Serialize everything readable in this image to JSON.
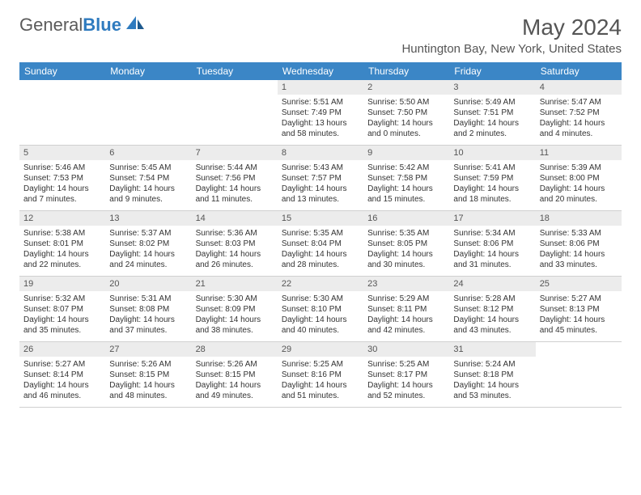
{
  "logo": {
    "part1": "General",
    "part2": "Blue"
  },
  "title": "May 2024",
  "location": "Huntington Bay, New York, United States",
  "accent_color": "#3b86c6",
  "daynum_bg": "#ececec",
  "weekdays": [
    "Sunday",
    "Monday",
    "Tuesday",
    "Wednesday",
    "Thursday",
    "Friday",
    "Saturday"
  ],
  "weeks": [
    [
      null,
      null,
      null,
      {
        "n": "1",
        "sr": "Sunrise: 5:51 AM",
        "ss": "Sunset: 7:49 PM",
        "d1": "Daylight: 13 hours",
        "d2": "and 58 minutes."
      },
      {
        "n": "2",
        "sr": "Sunrise: 5:50 AM",
        "ss": "Sunset: 7:50 PM",
        "d1": "Daylight: 14 hours",
        "d2": "and 0 minutes."
      },
      {
        "n": "3",
        "sr": "Sunrise: 5:49 AM",
        "ss": "Sunset: 7:51 PM",
        "d1": "Daylight: 14 hours",
        "d2": "and 2 minutes."
      },
      {
        "n": "4",
        "sr": "Sunrise: 5:47 AM",
        "ss": "Sunset: 7:52 PM",
        "d1": "Daylight: 14 hours",
        "d2": "and 4 minutes."
      }
    ],
    [
      {
        "n": "5",
        "sr": "Sunrise: 5:46 AM",
        "ss": "Sunset: 7:53 PM",
        "d1": "Daylight: 14 hours",
        "d2": "and 7 minutes."
      },
      {
        "n": "6",
        "sr": "Sunrise: 5:45 AM",
        "ss": "Sunset: 7:54 PM",
        "d1": "Daylight: 14 hours",
        "d2": "and 9 minutes."
      },
      {
        "n": "7",
        "sr": "Sunrise: 5:44 AM",
        "ss": "Sunset: 7:56 PM",
        "d1": "Daylight: 14 hours",
        "d2": "and 11 minutes."
      },
      {
        "n": "8",
        "sr": "Sunrise: 5:43 AM",
        "ss": "Sunset: 7:57 PM",
        "d1": "Daylight: 14 hours",
        "d2": "and 13 minutes."
      },
      {
        "n": "9",
        "sr": "Sunrise: 5:42 AM",
        "ss": "Sunset: 7:58 PM",
        "d1": "Daylight: 14 hours",
        "d2": "and 15 minutes."
      },
      {
        "n": "10",
        "sr": "Sunrise: 5:41 AM",
        "ss": "Sunset: 7:59 PM",
        "d1": "Daylight: 14 hours",
        "d2": "and 18 minutes."
      },
      {
        "n": "11",
        "sr": "Sunrise: 5:39 AM",
        "ss": "Sunset: 8:00 PM",
        "d1": "Daylight: 14 hours",
        "d2": "and 20 minutes."
      }
    ],
    [
      {
        "n": "12",
        "sr": "Sunrise: 5:38 AM",
        "ss": "Sunset: 8:01 PM",
        "d1": "Daylight: 14 hours",
        "d2": "and 22 minutes."
      },
      {
        "n": "13",
        "sr": "Sunrise: 5:37 AM",
        "ss": "Sunset: 8:02 PM",
        "d1": "Daylight: 14 hours",
        "d2": "and 24 minutes."
      },
      {
        "n": "14",
        "sr": "Sunrise: 5:36 AM",
        "ss": "Sunset: 8:03 PM",
        "d1": "Daylight: 14 hours",
        "d2": "and 26 minutes."
      },
      {
        "n": "15",
        "sr": "Sunrise: 5:35 AM",
        "ss": "Sunset: 8:04 PM",
        "d1": "Daylight: 14 hours",
        "d2": "and 28 minutes."
      },
      {
        "n": "16",
        "sr": "Sunrise: 5:35 AM",
        "ss": "Sunset: 8:05 PM",
        "d1": "Daylight: 14 hours",
        "d2": "and 30 minutes."
      },
      {
        "n": "17",
        "sr": "Sunrise: 5:34 AM",
        "ss": "Sunset: 8:06 PM",
        "d1": "Daylight: 14 hours",
        "d2": "and 31 minutes."
      },
      {
        "n": "18",
        "sr": "Sunrise: 5:33 AM",
        "ss": "Sunset: 8:06 PM",
        "d1": "Daylight: 14 hours",
        "d2": "and 33 minutes."
      }
    ],
    [
      {
        "n": "19",
        "sr": "Sunrise: 5:32 AM",
        "ss": "Sunset: 8:07 PM",
        "d1": "Daylight: 14 hours",
        "d2": "and 35 minutes."
      },
      {
        "n": "20",
        "sr": "Sunrise: 5:31 AM",
        "ss": "Sunset: 8:08 PM",
        "d1": "Daylight: 14 hours",
        "d2": "and 37 minutes."
      },
      {
        "n": "21",
        "sr": "Sunrise: 5:30 AM",
        "ss": "Sunset: 8:09 PM",
        "d1": "Daylight: 14 hours",
        "d2": "and 38 minutes."
      },
      {
        "n": "22",
        "sr": "Sunrise: 5:30 AM",
        "ss": "Sunset: 8:10 PM",
        "d1": "Daylight: 14 hours",
        "d2": "and 40 minutes."
      },
      {
        "n": "23",
        "sr": "Sunrise: 5:29 AM",
        "ss": "Sunset: 8:11 PM",
        "d1": "Daylight: 14 hours",
        "d2": "and 42 minutes."
      },
      {
        "n": "24",
        "sr": "Sunrise: 5:28 AM",
        "ss": "Sunset: 8:12 PM",
        "d1": "Daylight: 14 hours",
        "d2": "and 43 minutes."
      },
      {
        "n": "25",
        "sr": "Sunrise: 5:27 AM",
        "ss": "Sunset: 8:13 PM",
        "d1": "Daylight: 14 hours",
        "d2": "and 45 minutes."
      }
    ],
    [
      {
        "n": "26",
        "sr": "Sunrise: 5:27 AM",
        "ss": "Sunset: 8:14 PM",
        "d1": "Daylight: 14 hours",
        "d2": "and 46 minutes."
      },
      {
        "n": "27",
        "sr": "Sunrise: 5:26 AM",
        "ss": "Sunset: 8:15 PM",
        "d1": "Daylight: 14 hours",
        "d2": "and 48 minutes."
      },
      {
        "n": "28",
        "sr": "Sunrise: 5:26 AM",
        "ss": "Sunset: 8:15 PM",
        "d1": "Daylight: 14 hours",
        "d2": "and 49 minutes."
      },
      {
        "n": "29",
        "sr": "Sunrise: 5:25 AM",
        "ss": "Sunset: 8:16 PM",
        "d1": "Daylight: 14 hours",
        "d2": "and 51 minutes."
      },
      {
        "n": "30",
        "sr": "Sunrise: 5:25 AM",
        "ss": "Sunset: 8:17 PM",
        "d1": "Daylight: 14 hours",
        "d2": "and 52 minutes."
      },
      {
        "n": "31",
        "sr": "Sunrise: 5:24 AM",
        "ss": "Sunset: 8:18 PM",
        "d1": "Daylight: 14 hours",
        "d2": "and 53 minutes."
      },
      null
    ]
  ]
}
